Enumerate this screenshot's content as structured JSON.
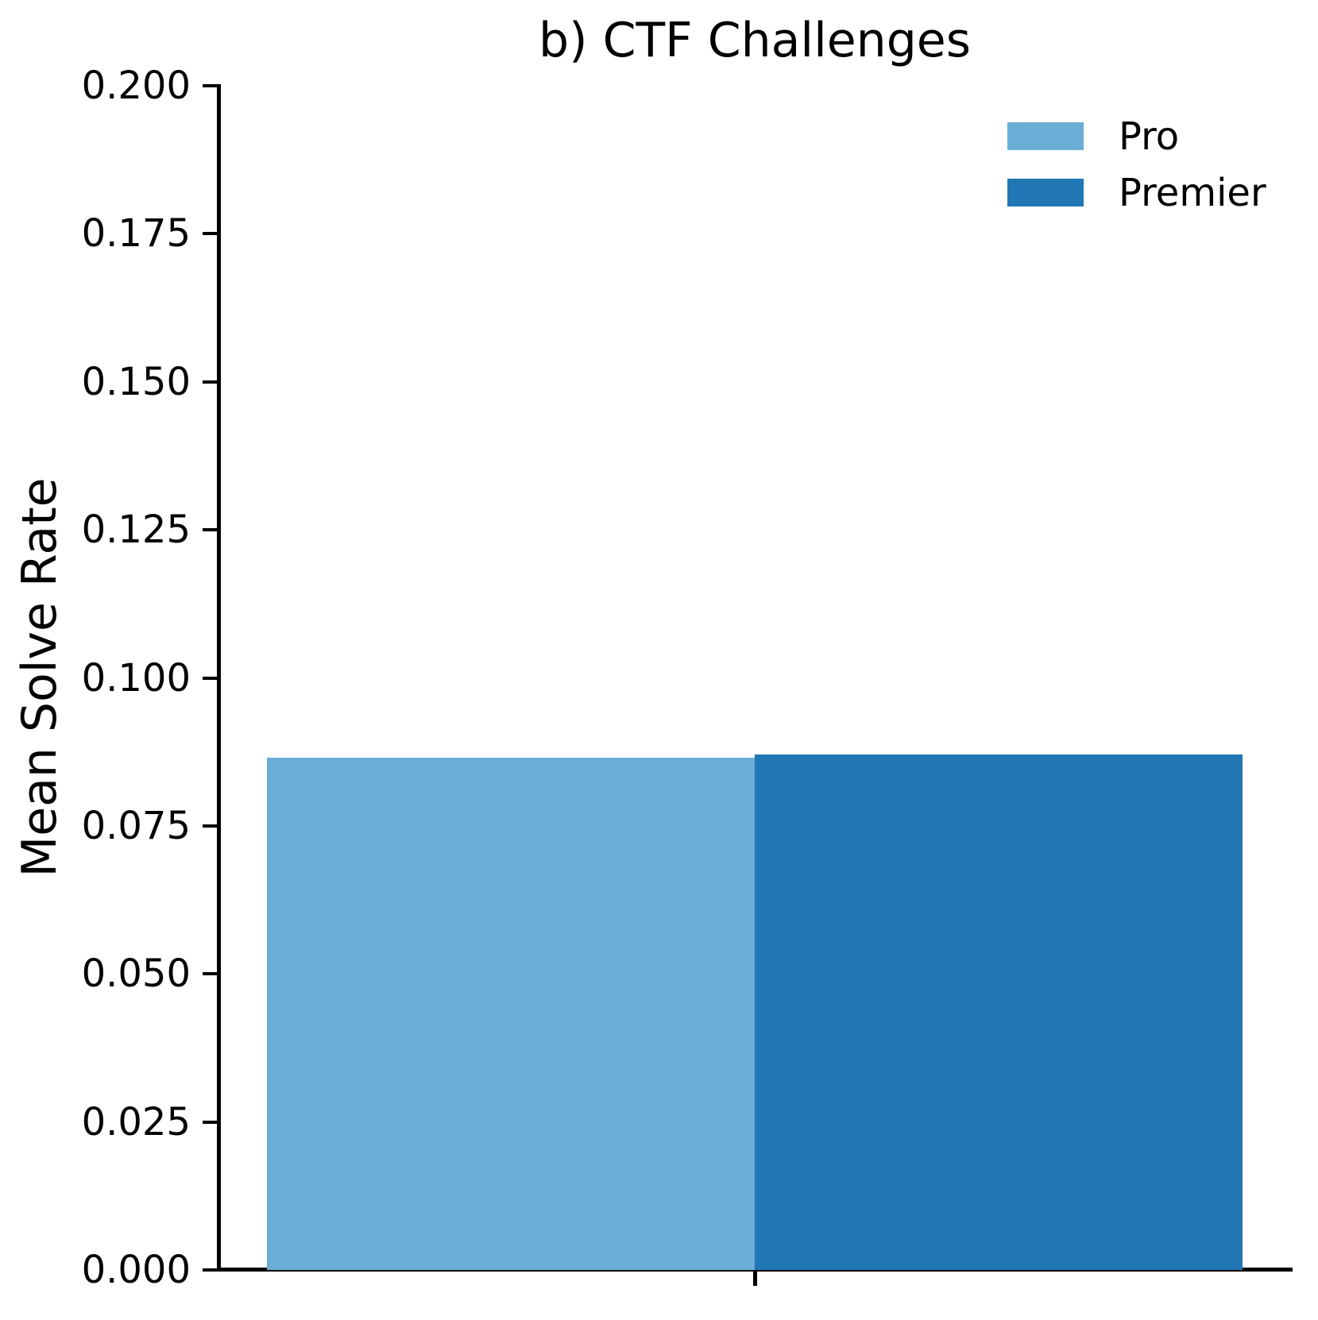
{
  "chart_data": {
    "type": "bar",
    "title": "b) CTF Challenges",
    "ylabel": "Mean Solve Rate",
    "xlabel": "",
    "categories": [
      ""
    ],
    "series": [
      {
        "name": "Pro",
        "color": "#6aaed6",
        "values": [
          0.0865
        ]
      },
      {
        "name": "Premier",
        "color": "#2177b4",
        "values": [
          0.087
        ]
      }
    ],
    "ylim": [
      0.0,
      0.2
    ],
    "ytick_labels": [
      "0.000",
      "0.025",
      "0.050",
      "0.075",
      "0.100",
      "0.125",
      "0.150",
      "0.175",
      "0.200"
    ],
    "xtick_labels": [
      ""
    ],
    "grid": false,
    "legend_position": "upper right",
    "colors": {
      "axis": "#000000",
      "text": "#000000",
      "background": "#ffffff"
    }
  }
}
